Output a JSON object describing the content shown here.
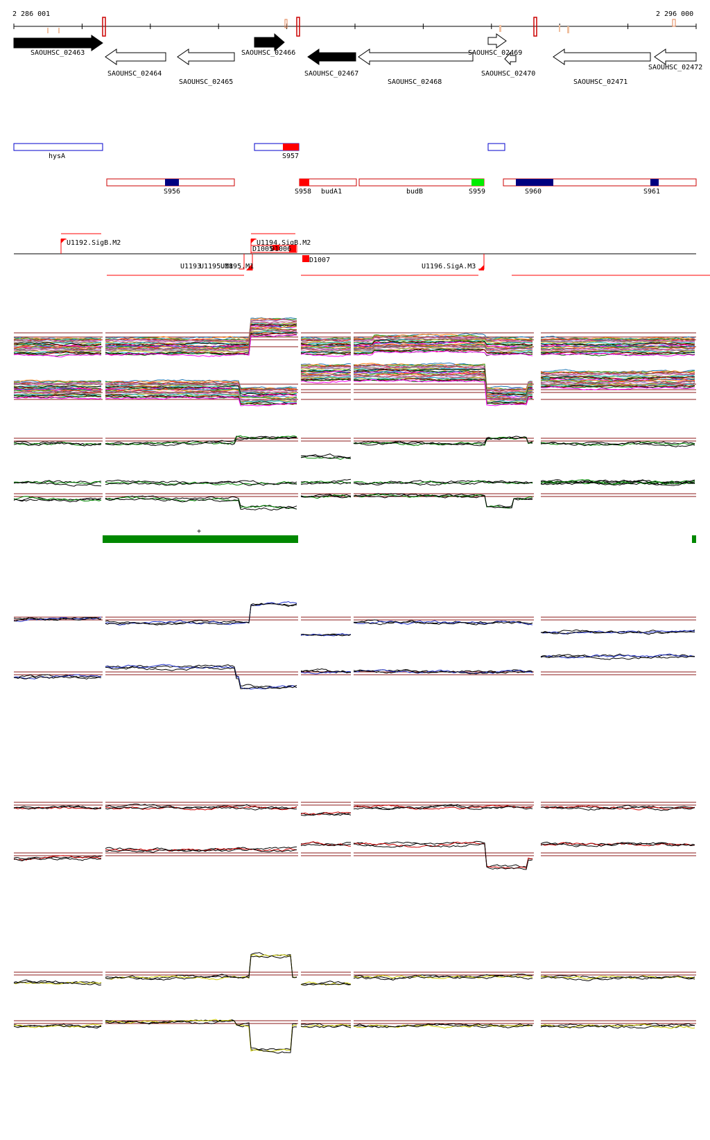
{
  "coordinates": {
    "start": "2 286 001",
    "end": "2 296 000"
  },
  "genes": [
    {
      "name": "SAOUHSC_02463",
      "strand": "+",
      "filled": true
    },
    {
      "name": "SAOUHSC_02464",
      "strand": "-",
      "filled": false
    },
    {
      "name": "SAOUHSC_02465",
      "strand": "-",
      "filled": false
    },
    {
      "name": "SAOUHSC_02466",
      "strand": "+",
      "filled": true
    },
    {
      "name": "SAOUHSC_02467",
      "strand": "-",
      "filled": true
    },
    {
      "name": "SAOUHSC_02468",
      "strand": "-",
      "filled": false
    },
    {
      "name": "SAOUHSC_02469",
      "strand": "+",
      "filled": false
    },
    {
      "name": "SAOUHSC_02470",
      "strand": "-",
      "filled": false
    },
    {
      "name": "SAOUHSC_02471",
      "strand": "-",
      "filled": false
    },
    {
      "name": "SAOUHSC_02472",
      "strand": "-",
      "filled": false
    }
  ],
  "segments_row1": [
    {
      "label": "hysA",
      "color": "#0000cc"
    },
    {
      "label": "S957",
      "color": "#0000cc"
    },
    {
      "label": "",
      "color": "#0000cc"
    }
  ],
  "segments_row2": [
    {
      "label": "S956",
      "color": "#cc0000"
    },
    {
      "label": "S958",
      "color": "#cc0000"
    },
    {
      "label": "budA1",
      "color": "#cc0000"
    },
    {
      "label": "budB",
      "color": "#cc0000"
    },
    {
      "label": "S959",
      "color": "#00cc00"
    },
    {
      "label": "S960",
      "color": "#000080"
    },
    {
      "label": "S961",
      "color": "#000080"
    }
  ],
  "promoters": [
    "U1192.SigB.M2",
    "U1194.SigB.M2",
    "D1005",
    "D1006",
    "U1193",
    "U1195.M8",
    "U1195.M1",
    "D1007",
    "U1196.SigA.M3"
  ],
  "marker": "+",
  "track_colors": {
    "multi": [
      "#1f77b4",
      "#ff7f0e",
      "#2ca02c",
      "#d62728",
      "#9467bd",
      "#8c564b",
      "#e377c2",
      "#7f7f7f",
      "#bcbd22",
      "#17becf",
      "#000000",
      "#aa0000",
      "#006600",
      "#ff00ff"
    ],
    "pair_green": "#008800",
    "pair_blue": "#2233cc",
    "pair_red": "#cc0000",
    "pair_yellow": "#cccc00",
    "threshold": "#8b1a1a"
  }
}
